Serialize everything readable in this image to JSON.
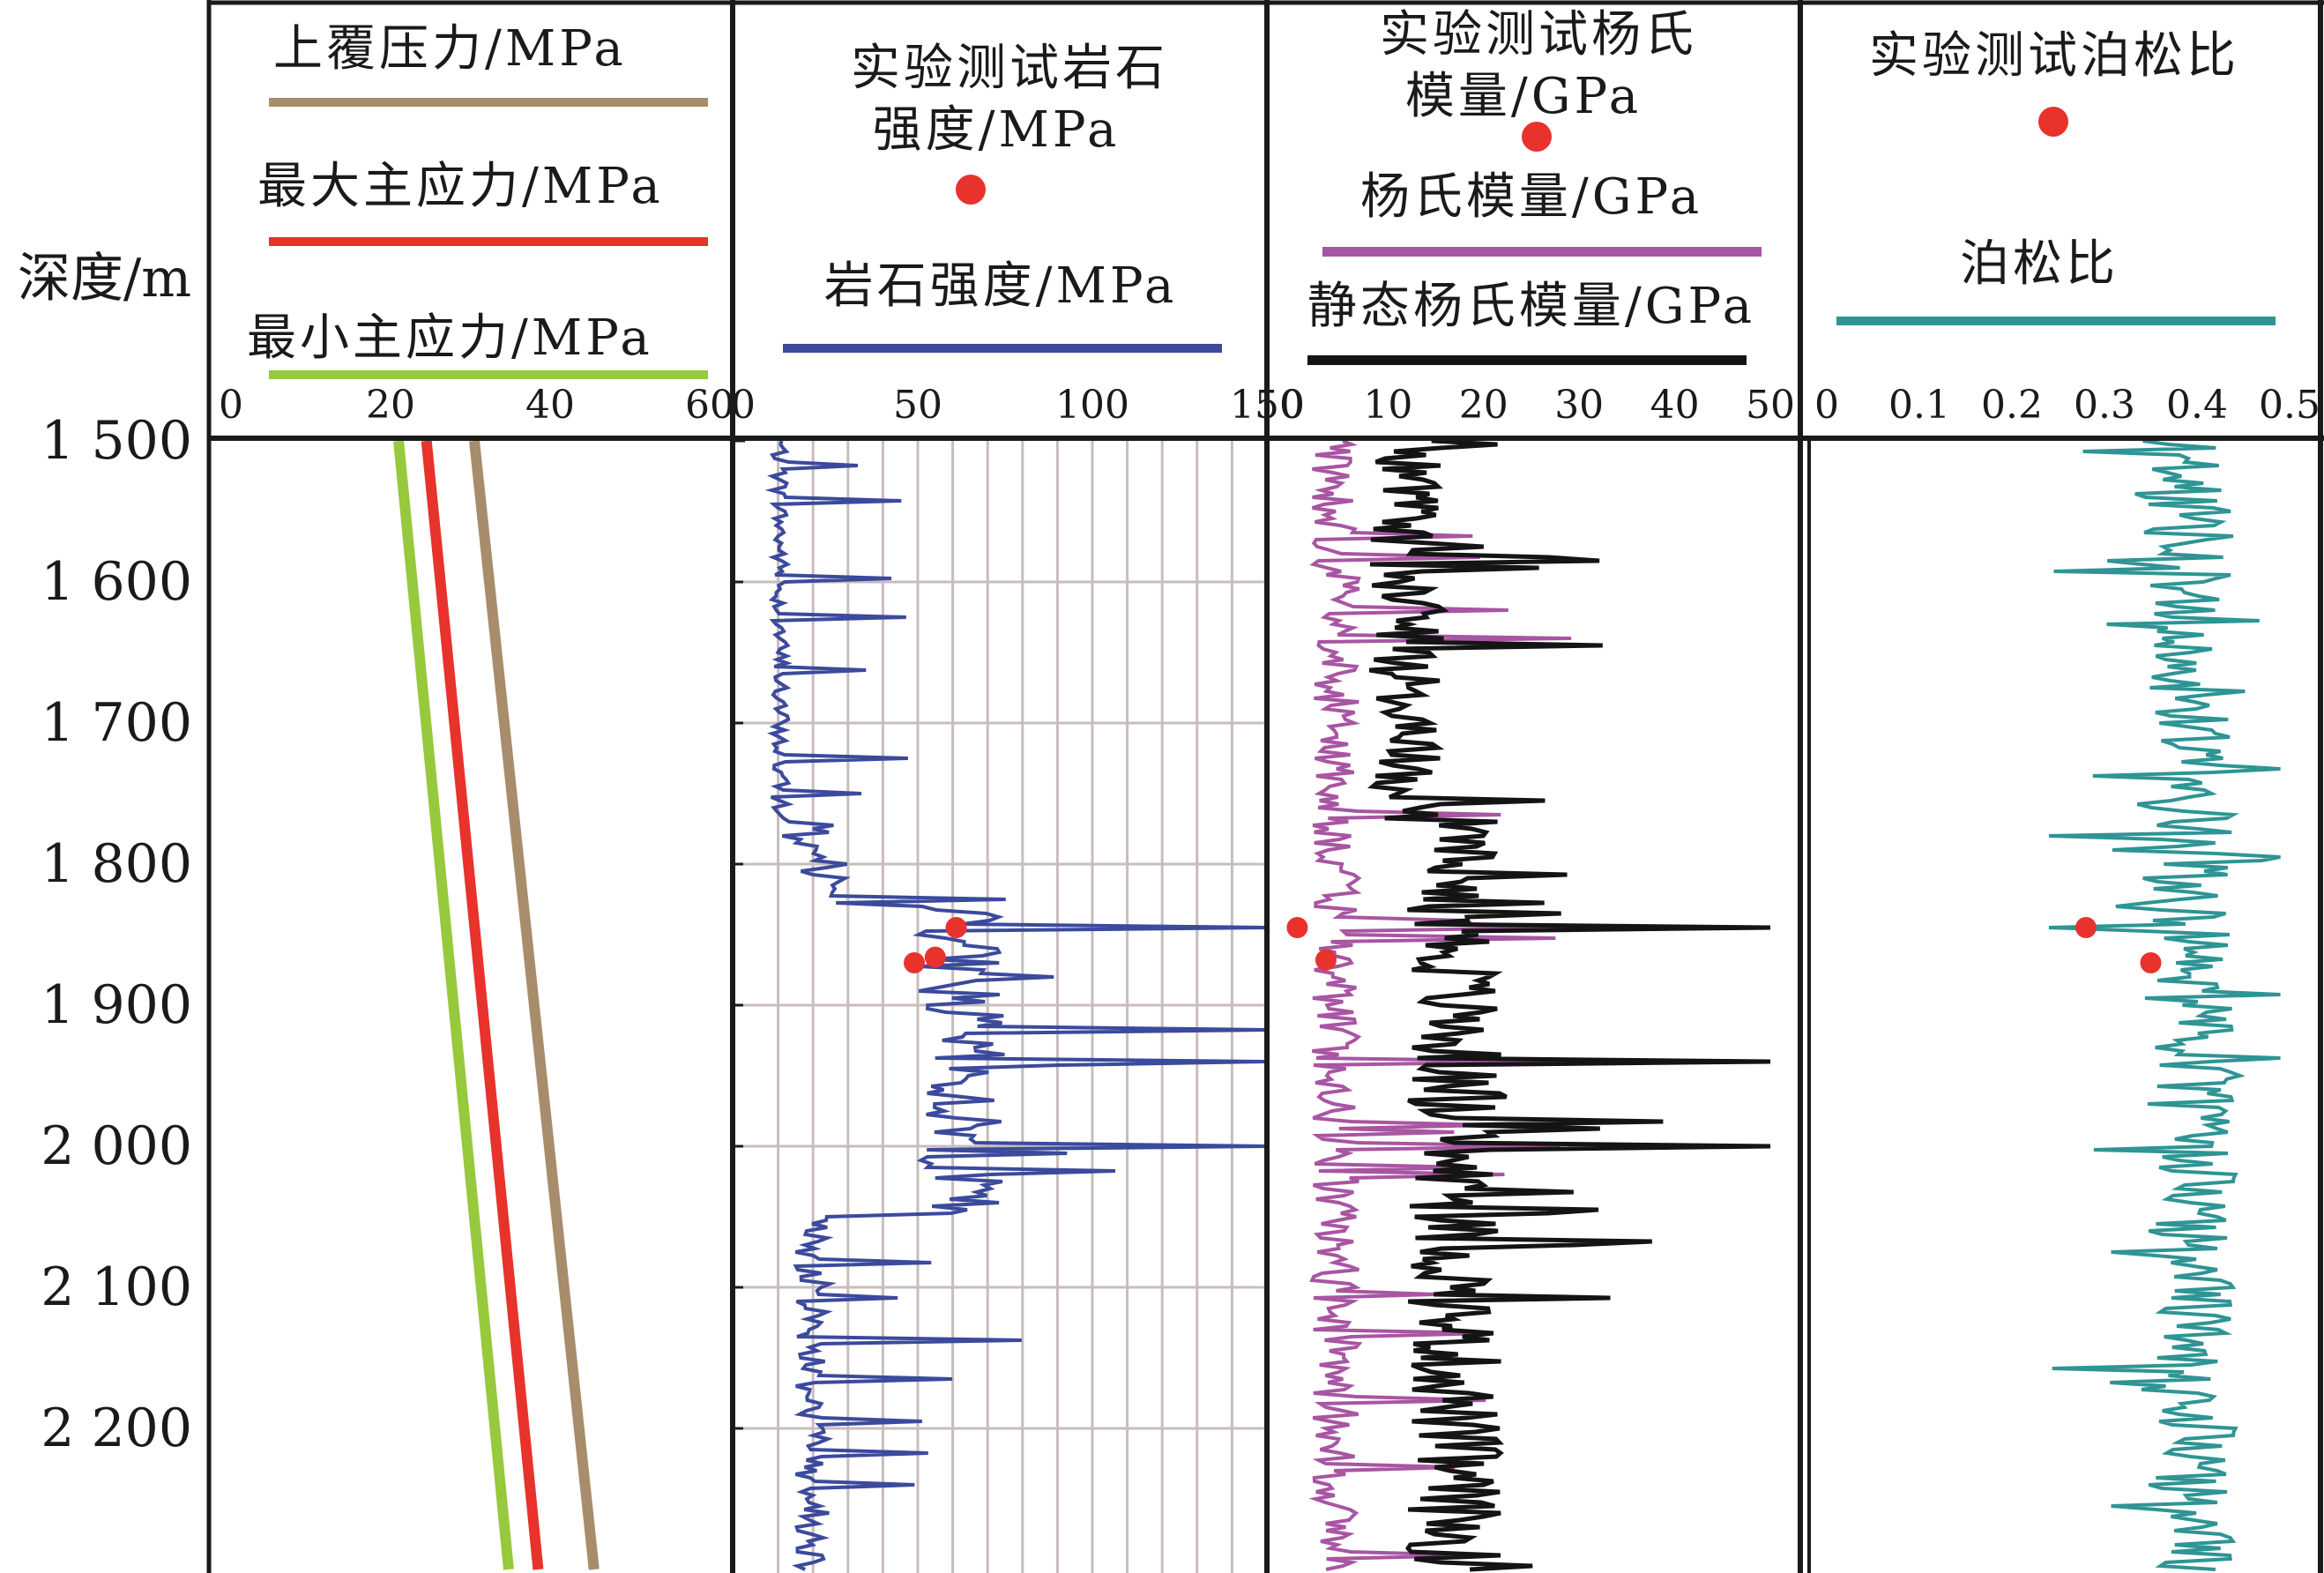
{
  "chart_data": {
    "type": "line",
    "depth_axis": {
      "label": "深度/m",
      "range": [
        1500,
        2300
      ],
      "ticks": [
        1500,
        1600,
        1700,
        1800,
        1900,
        2000,
        2100,
        2200
      ],
      "tick_labels": [
        "1 500",
        "1 600",
        "1 700",
        "1 800",
        "1 900",
        "2 000",
        "2 100",
        "2 200"
      ],
      "direction": "down"
    },
    "tracks": [
      {
        "id": "stress",
        "xlim": [
          0,
          60
        ],
        "ticks": [
          0,
          20,
          40,
          60
        ],
        "tick_labels": [
          "0",
          "20",
          "40",
          "60"
        ],
        "grid": false,
        "series": [
          {
            "name": "上覆压力/MPa",
            "color": "#a88c6c",
            "depth": [
              1500,
              2300
            ],
            "values": [
              30.5,
              45.5
            ]
          },
          {
            "name": "最大主应力/MPa",
            "color": "#e8322c",
            "depth": [
              1500,
              2300
            ],
            "values": [
              24.5,
              38.5
            ]
          },
          {
            "name": "最小主应力/MPa",
            "color": "#97c93d",
            "depth": [
              1500,
              2300
            ],
            "values": [
              21.0,
              34.8
            ]
          }
        ]
      },
      {
        "id": "strength",
        "xlim": [
          0,
          150
        ],
        "ticks": [
          0,
          50,
          100,
          150
        ],
        "tick_labels": [
          "0",
          "50",
          "100",
          "150"
        ],
        "grid": true,
        "legend": [
          {
            "name": "实验测试岩石强度/MPa",
            "marker": "dot",
            "color": "#e8322c"
          },
          {
            "name": "岩石强度/MPa",
            "marker": "line",
            "color": "#3b4a9c"
          }
        ],
        "log": {
          "name": "岩石强度/MPa",
          "color": "#3b4a9c",
          "kind": "strength"
        },
        "points": [
          {
            "name": "实验测试岩石强度/MPa",
            "color": "#e8322c",
            "depth": [
              1845,
              1866,
              1870
            ],
            "values": [
              61,
              55,
              49
            ]
          }
        ]
      },
      {
        "id": "modulus",
        "xlim": [
          0,
          50
        ],
        "ticks": [
          0,
          10,
          20,
          30,
          40,
          50
        ],
        "tick_labels": [
          "0",
          "10",
          "20",
          "30",
          "40",
          "50"
        ],
        "grid": false,
        "legend": [
          {
            "name": "实验测试杨氏模量/GPa",
            "marker": "dot",
            "color": "#e8322c"
          },
          {
            "name": "杨氏模量/GPa",
            "marker": "line",
            "color": "#a855a2"
          },
          {
            "name": "静态杨氏模量/GPa",
            "marker": "line",
            "color": "#141414"
          }
        ],
        "logs": [
          {
            "name": "杨氏模量/GPa",
            "color": "#a855a2",
            "kind": "dynamic"
          },
          {
            "name": "静态杨氏模量/GPa",
            "color": "#141414",
            "kind": "static"
          }
        ],
        "points": [
          {
            "name": "实验测试杨氏模量/GPa",
            "color": "#e8322c",
            "depth": [
              1845,
              1868
            ],
            "values": [
              0.5,
              3.5
            ]
          }
        ]
      },
      {
        "id": "poisson",
        "xlim": [
          0,
          0.5
        ],
        "ticks": [
          0,
          0.1,
          0.2,
          0.3,
          0.4,
          0.5
        ],
        "tick_labels": [
          "0",
          "0.1",
          "0.2",
          "0.3",
          "0.4",
          "0.5"
        ],
        "grid": false,
        "legend": [
          {
            "name": "实验测试泊松比",
            "marker": "dot",
            "color": "#e8322c"
          },
          {
            "name": "泊松比",
            "marker": "line",
            "color": "#2f9494"
          }
        ],
        "log": {
          "name": "泊松比",
          "color": "#2f9494",
          "kind": "poisson"
        },
        "points": [
          {
            "name": "实验测试泊松比",
            "color": "#e8322c",
            "depth": [
              1845,
              1870
            ],
            "values": [
              0.28,
              0.35
            ]
          }
        ]
      }
    ]
  },
  "legend_text": {
    "overburden": "上覆压力/MPa",
    "smax": "最大主应力/MPa",
    "smin": "最小主应力/MPa",
    "ts_line1": "实验测试岩石",
    "ts_line2": "强度/MPa",
    "strength": "岩石强度/MPa",
    "ym_line1": "实验测试杨氏",
    "ym_line2": "模量/GPa",
    "ym": "杨氏模量/GPa",
    "static_ym": "静态杨氏模量/GPa",
    "tp": "实验测试泊松比",
    "poisson": "泊松比"
  }
}
